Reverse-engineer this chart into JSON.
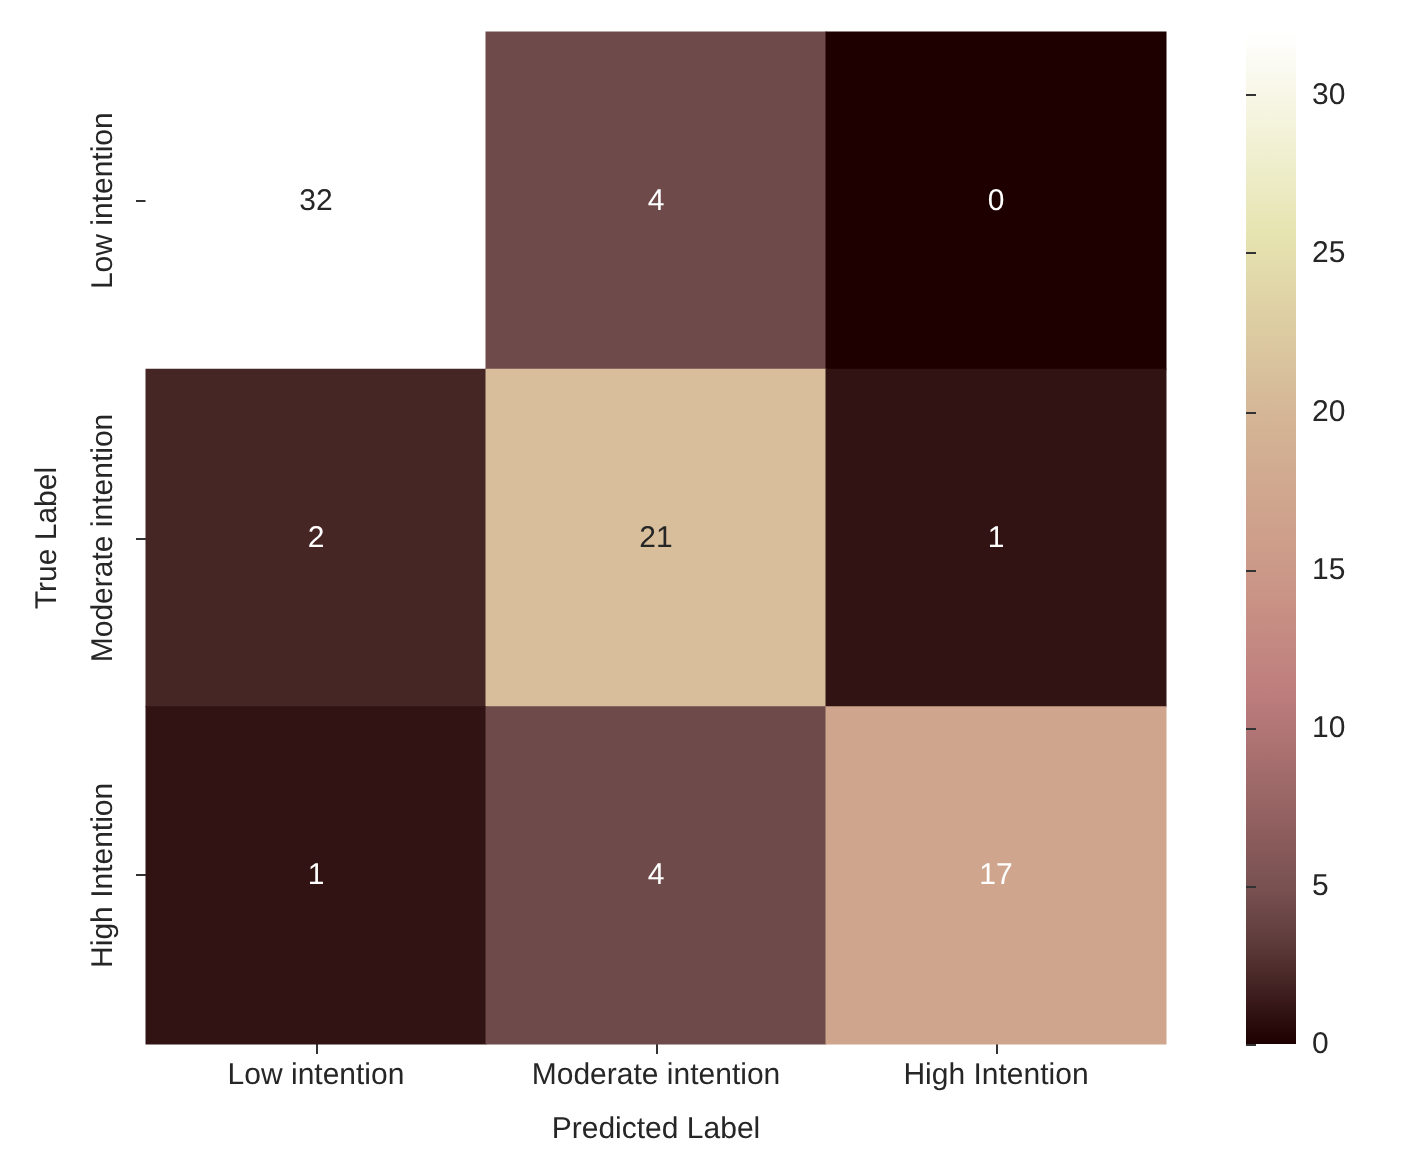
{
  "chart_data": {
    "type": "heatmap",
    "xlabel": "Predicted Label",
    "ylabel": "True Label",
    "categories": [
      "Low intention",
      "Moderate intention",
      "High Intention"
    ],
    "y_categories": [
      "Low intention",
      "Moderate intention",
      "High Intention"
    ],
    "cells": [
      [
        32,
        4,
        0
      ],
      [
        2,
        21,
        1
      ],
      [
        1,
        4,
        17
      ]
    ],
    "clim": [
      0,
      32
    ],
    "cticks": [
      0,
      5,
      10,
      15,
      20,
      25,
      30
    ],
    "data_labels": true
  }
}
